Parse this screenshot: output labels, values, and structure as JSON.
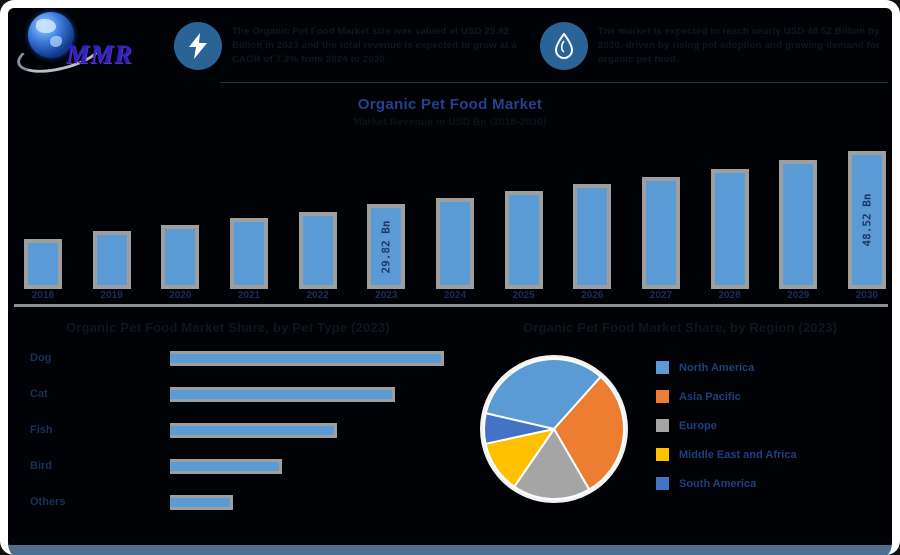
{
  "brand": {
    "logo_text": "MMR"
  },
  "header": {
    "highlights": [
      {
        "icon": "lightning-icon",
        "text": "The Organic Pet Food Market size was valued at USD 29.82 Billion in 2023 and the total revenue is expected to grow at a CAGR of 7.2% from 2024 to 2030."
      },
      {
        "icon": "droplet-icon",
        "text": "The market is expected to reach nearly USD 48.52 Billion by 2030, driven by rising pet adoption and growing demand for organic pet food."
      }
    ]
  },
  "main_chart": {
    "title": "Organic Pet Food Market",
    "subtitle": "Market Revenue in USD Bn (2018-2030)"
  },
  "sections": {
    "left_heading": "Organic Pet Food Market Share, by Pet Type (2023)",
    "right_heading": "Organic Pet Food Market Share, by Region (2023)"
  },
  "colors": {
    "bar_fill": "#5B9BD5",
    "bar_border": "#9E9E9E",
    "title_blue": "#24418F",
    "value_label_navy": "#1F3864",
    "footer_strip": "#4D7092",
    "badge_blue": "#2A6396"
  },
  "chart_data": [
    {
      "type": "bar",
      "title": "Organic Pet Food Market",
      "subtitle": "Market Revenue in USD Bn (2018-2030)",
      "categories": [
        "2018",
        "2019",
        "2020",
        "2021",
        "2022",
        "2023",
        "2024",
        "2025",
        "2026",
        "2027",
        "2028",
        "2029",
        "2030"
      ],
      "values": [
        17.5,
        20.5,
        22.5,
        24.8,
        27.2,
        29.82,
        32.0,
        34.3,
        36.8,
        39.4,
        42.3,
        45.3,
        48.52
      ],
      "unit": "USD Bn",
      "data_labels": {
        "2023": "29.82 Bn",
        "2030": "48.52 Bn"
      },
      "ylim": [
        0,
        50
      ],
      "grid": false,
      "bar_color": "#5B9BD5",
      "bar_border_color": "#9E9E9E"
    },
    {
      "type": "bar",
      "orientation": "horizontal",
      "title": "Organic Pet Food Market Share, by Pet Type (2023)",
      "categories": [
        "Dog",
        "Cat",
        "Fish",
        "Bird",
        "Others"
      ],
      "values": [
        100,
        82,
        61,
        41,
        23
      ],
      "unit": "index (longest bar = 100, estimated)",
      "bar_color": "#5B9BD5",
      "bar_border_color": "#9E9E9E"
    },
    {
      "type": "pie",
      "title": "Organic Pet Food Market Share, by Region (2023)",
      "categories": [
        "North America",
        "Asia Pacific",
        "Europe",
        "Middle East and Africa",
        "South America"
      ],
      "values": [
        33,
        30,
        18,
        12,
        7
      ],
      "unit": "% (estimated from slice angles)",
      "colors": [
        "#5B9BD5",
        "#ED7D31",
        "#A5A5A5",
        "#FFC000",
        "#4472C4"
      ],
      "start_angle_deg": 283,
      "legend_position": "right"
    }
  ]
}
